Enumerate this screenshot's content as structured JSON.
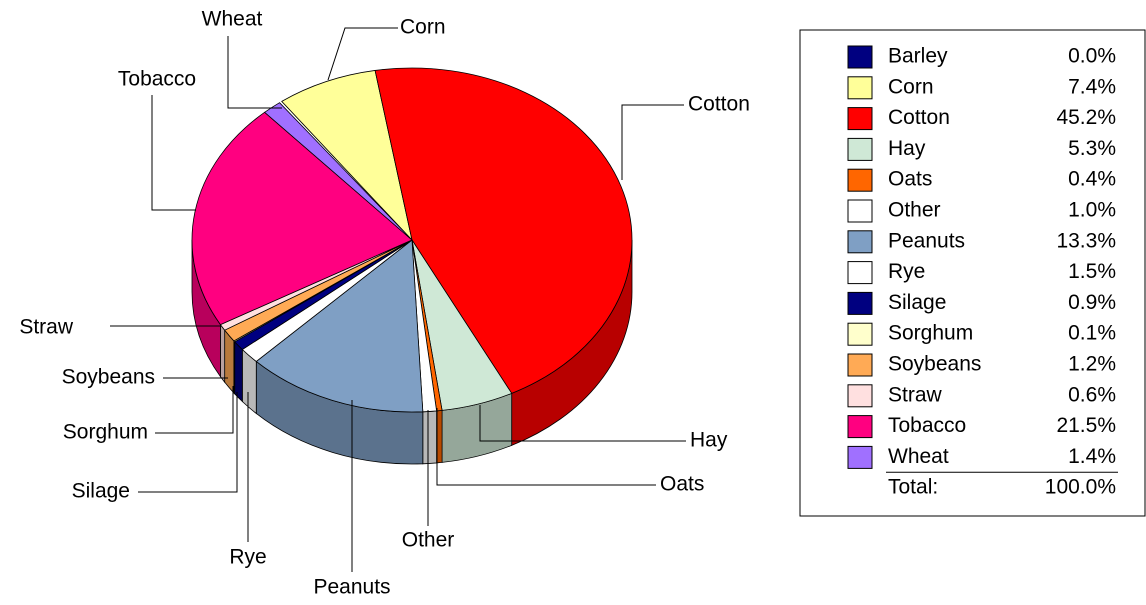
{
  "chart_data": {
    "type": "pie",
    "categories": [
      "Barley",
      "Corn",
      "Cotton",
      "Hay",
      "Oats",
      "Other",
      "Peanuts",
      "Rye",
      "Silage",
      "Sorghum",
      "Soybeans",
      "Straw",
      "Tobacco",
      "Wheat"
    ],
    "values": [
      0.0,
      7.4,
      45.2,
      5.3,
      0.4,
      1.0,
      13.3,
      1.5,
      0.9,
      0.1,
      1.2,
      0.6,
      21.5,
      1.4
    ],
    "value_labels": [
      "0.0%",
      "7.4%",
      "45.2%",
      "5.3%",
      "0.4%",
      "1.0%",
      "13.3%",
      "1.5%",
      "0.9%",
      "0.1%",
      "1.2%",
      "0.6%",
      "21.5%",
      "1.4%"
    ],
    "colors": [
      "#000080",
      "#ffff99",
      "#ff0000",
      "#cfe8d6",
      "#ff6600",
      "#ffffff",
      "#7f9fc4",
      "#ffffff",
      "#000080",
      "#ffffcc",
      "#ffaa55",
      "#ffe0e0",
      "#ff0080",
      "#a070ff"
    ],
    "total_label": "Total:",
    "total_value": 100.0,
    "total_value_label": "100.0%"
  }
}
